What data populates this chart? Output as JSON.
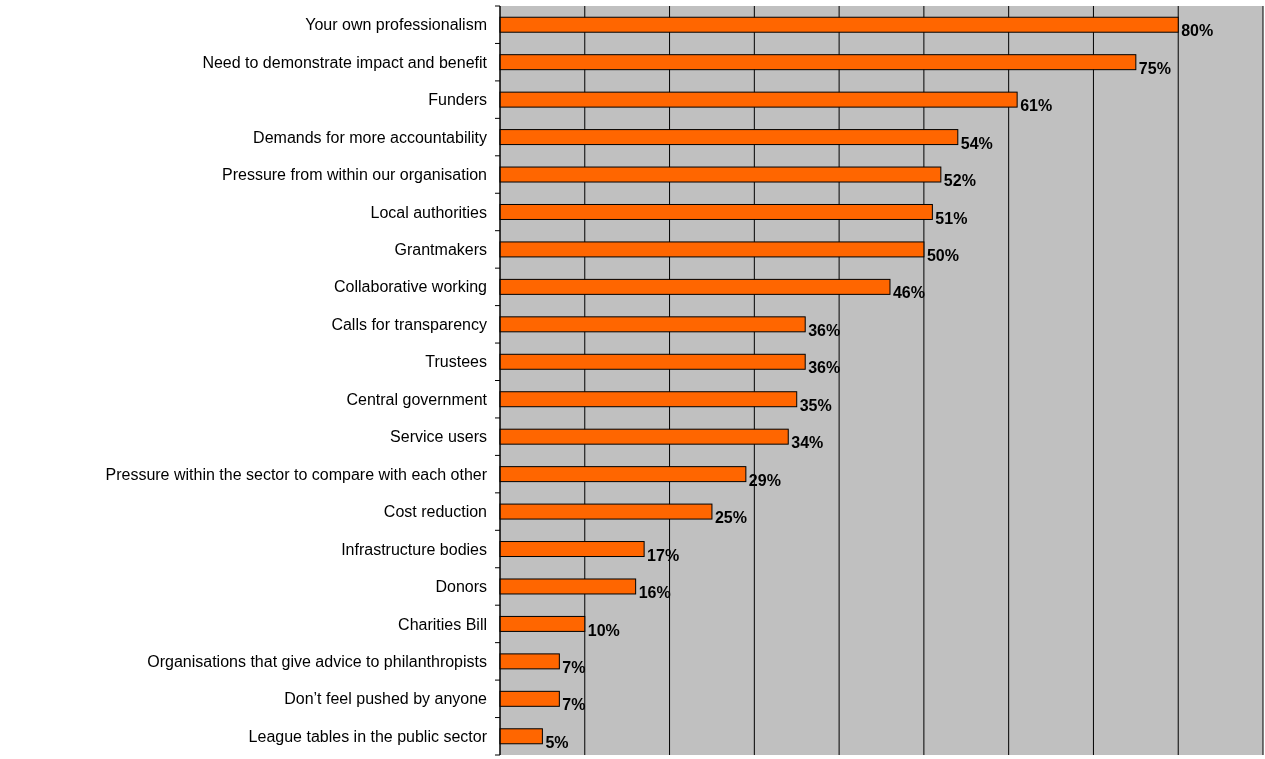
{
  "chart_data": {
    "type": "bar",
    "orientation": "horizontal",
    "categories": [
      "Your own professionalism",
      "Need to demonstrate impact and benefit",
      "Funders",
      "Demands for more accountability",
      "Pressure from within our organisation",
      "Local authorities",
      "Grantmakers",
      "Collaborative working",
      "Calls for transparency",
      "Trustees",
      "Central government",
      "Service users",
      "Pressure within the sector to compare with each other",
      "Cost reduction",
      "Infrastructure bodies",
      "Donors",
      "Charities Bill",
      "Organisations that give advice to philanthropists",
      "Don’t feel pushed by anyone",
      "League tables in the public sector"
    ],
    "values": [
      80,
      75,
      61,
      54,
      52,
      51,
      50,
      46,
      36,
      36,
      35,
      34,
      29,
      25,
      17,
      16,
      10,
      7,
      7,
      5
    ],
    "value_labels": [
      "80%",
      "75%",
      "61%",
      "54%",
      "52%",
      "51%",
      "50%",
      "46%",
      "36%",
      "36%",
      "35%",
      "34%",
      "29%",
      "25%",
      "17%",
      "16%",
      "10%",
      "7%",
      "7%",
      "5%"
    ],
    "color": "#ff6600",
    "xlim": [
      0,
      90
    ],
    "xticks": [
      {
        "value": 0,
        "label": null
      },
      {
        "value": 10,
        "label": null
      },
      {
        "value": 20,
        "label": null
      },
      {
        "value": 30,
        "label": null
      },
      {
        "value": 40,
        "label": null
      },
      {
        "value": 50,
        "label": null
      },
      {
        "value": 60,
        "label": null
      },
      {
        "value": 70,
        "label": null
      },
      {
        "value": 80,
        "label": null
      },
      {
        "value": 90,
        "label": null
      }
    ],
    "grid": "x",
    "tick_labels": "y"
  }
}
